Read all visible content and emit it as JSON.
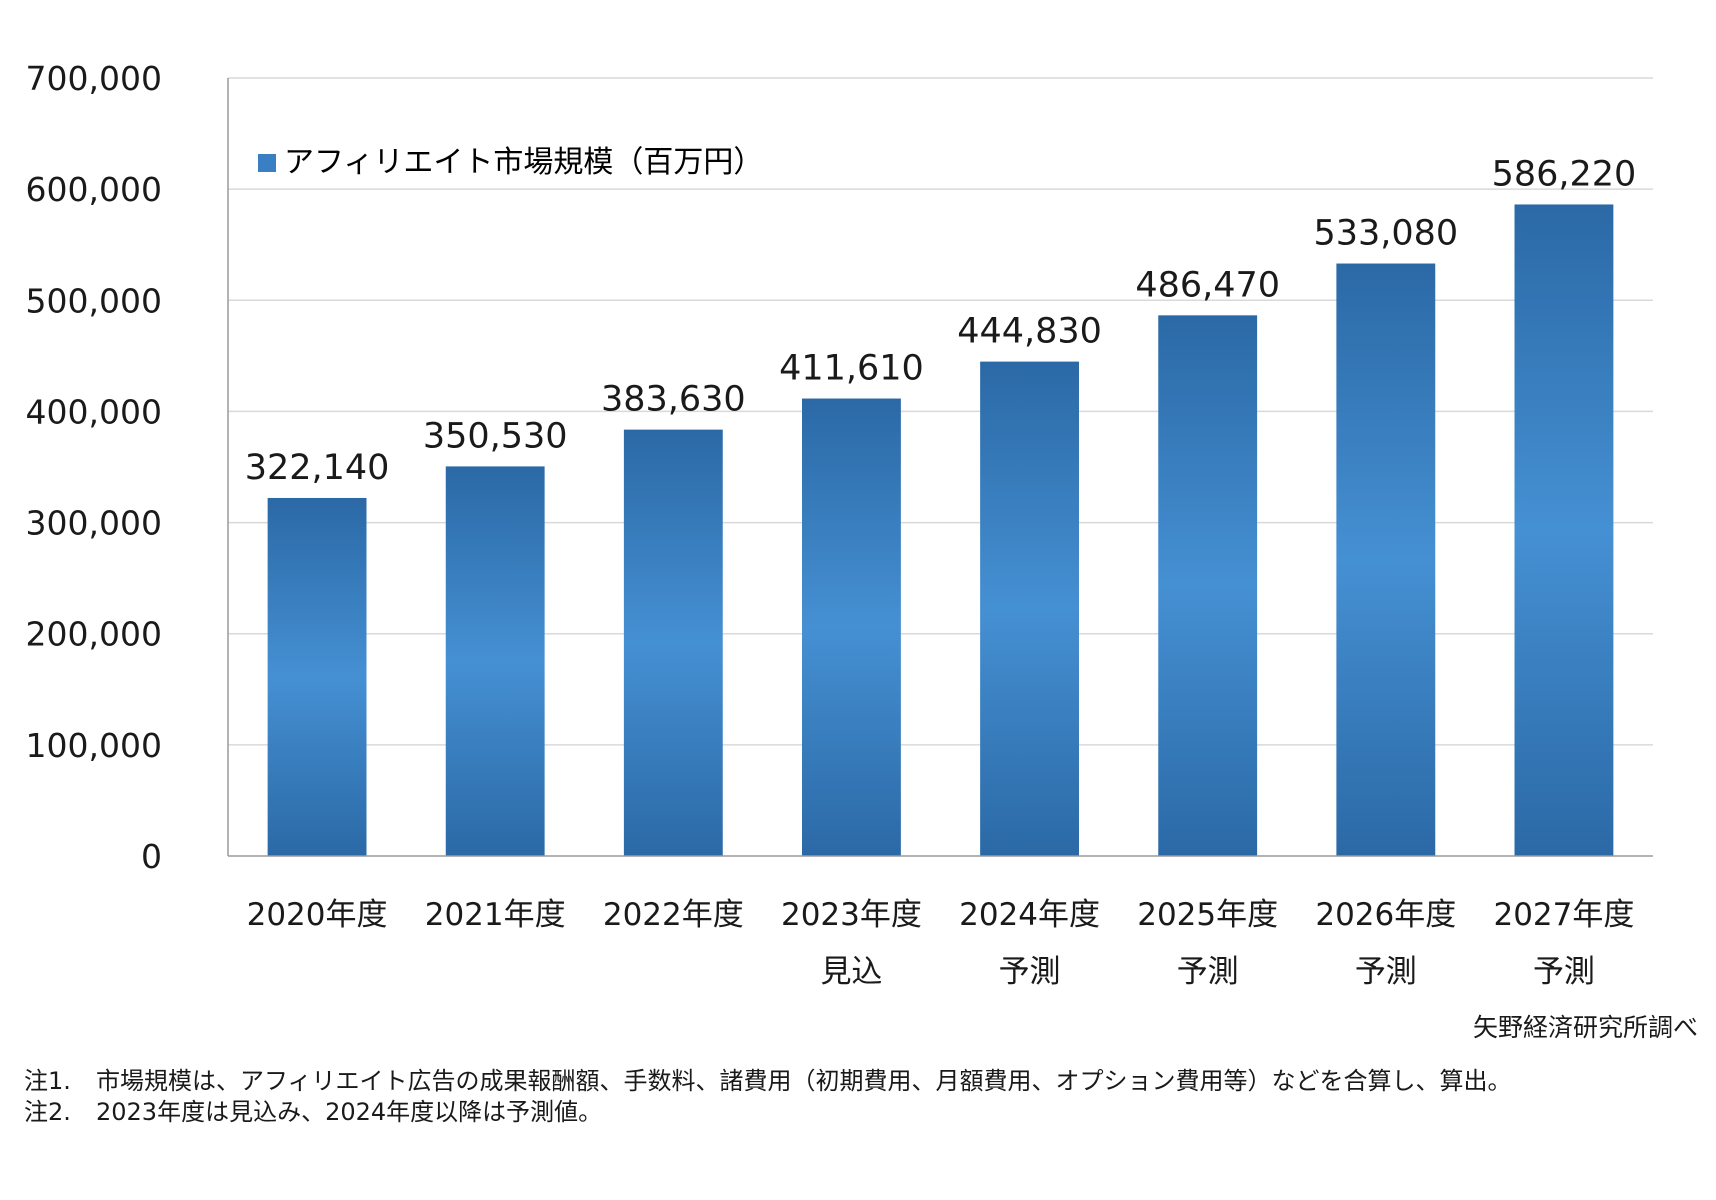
{
  "colors": {
    "bar_edge": "#2b69a6",
    "bar_mid": "#4590d3",
    "grid": "#d9d9d9",
    "axis": "#9a9a9a",
    "legend_swatch": "#3a7fc4"
  },
  "chart_data": {
    "type": "bar",
    "title": "",
    "xlabel": "",
    "ylabel": "",
    "ylim": [
      0,
      700000
    ],
    "yticks": [
      0,
      100000,
      200000,
      300000,
      400000,
      500000,
      600000,
      700000
    ],
    "ytick_labels": [
      "0",
      "100,000",
      "200,000",
      "300,000",
      "400,000",
      "500,000",
      "600,000",
      "700,000"
    ],
    "grid": true,
    "legend_position": "top-left",
    "categories": [
      [
        "2020年度",
        ""
      ],
      [
        "2021年度",
        ""
      ],
      [
        "2022年度",
        ""
      ],
      [
        "2023年度",
        "見込"
      ],
      [
        "2024年度",
        "予測"
      ],
      [
        "2025年度",
        "予測"
      ],
      [
        "2026年度",
        "予測"
      ],
      [
        "2027年度",
        "予測"
      ]
    ],
    "series": [
      {
        "name": "アフィリエイト市場規模（百万円）",
        "values": [
          322140,
          350530,
          383630,
          411610,
          444830,
          486470,
          533080,
          586220
        ],
        "value_labels": [
          "322,140",
          "350,530",
          "383,630",
          "411,610",
          "444,830",
          "486,470",
          "533,080",
          "586,220"
        ]
      }
    ]
  },
  "source": "矢野経済研究所調べ",
  "notes": [
    {
      "label": "注1.",
      "text": "市場規模は、アフィリエイト広告の成果報酬額、手数料、諸費用（初期費用、月額費用、オプション費用等）などを合算し、算出。"
    },
    {
      "label": "注2.",
      "text": "2023年度は見込み、2024年度以降は予測値。"
    }
  ]
}
